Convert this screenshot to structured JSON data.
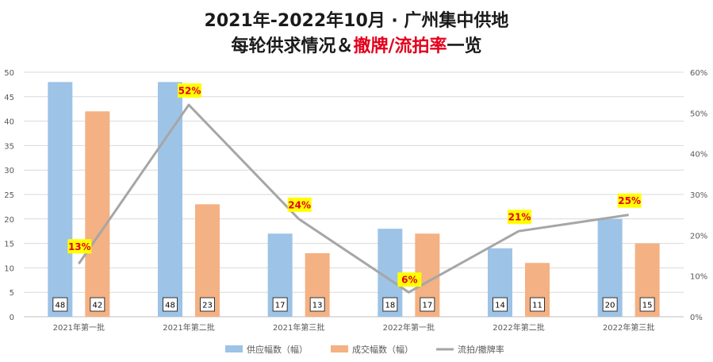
{
  "header": {
    "title_line1": "2021年-2022年10月 · 广州集中供地",
    "title_line2_part1": "每轮供求情况＆",
    "title_line2_part2": "撤牌/流拍率",
    "title_line2_part3": "一览"
  },
  "chart_data": {
    "type": "bar",
    "title": "2021年-2022年10月 · 广州集中供地每轮供求情况＆撤牌/流拍率一览",
    "categories": [
      "2021年第一批",
      "2021年第二批",
      "2021年第三批",
      "2022年第一批",
      "2022年第二批",
      "2022年第三批"
    ],
    "series": [
      {
        "name": "供应幅数（幅）",
        "type": "bar",
        "axis": "left",
        "color": "#9dc3e6",
        "values": [
          48,
          48,
          17,
          18,
          14,
          20
        ]
      },
      {
        "name": "成交幅数（幅）",
        "type": "bar",
        "axis": "left",
        "color": "#f4b183",
        "values": [
          42,
          23,
          13,
          17,
          11,
          15
        ]
      },
      {
        "name": "流拍/撤牌率",
        "type": "line",
        "axis": "right",
        "color": "#a6a6a6",
        "values": [
          13,
          52,
          24,
          6,
          21,
          25
        ],
        "labels": [
          "13%",
          "52%",
          "24%",
          "6%",
          "21%",
          "25%"
        ]
      }
    ],
    "y_left": {
      "min": 0,
      "max": 50,
      "ticks": [
        "0",
        "5",
        "10",
        "15",
        "20",
        "25",
        "30",
        "35",
        "40",
        "45",
        "50"
      ]
    },
    "y_right": {
      "min": 0,
      "max": 60,
      "ticks": [
        "0%",
        "10%",
        "20%",
        "30%",
        "40%",
        "50%",
        "60%"
      ]
    },
    "grid": true,
    "legend": "bottom",
    "rate_label_style": {
      "background": "#ffff00",
      "color": "#e3001b"
    }
  }
}
